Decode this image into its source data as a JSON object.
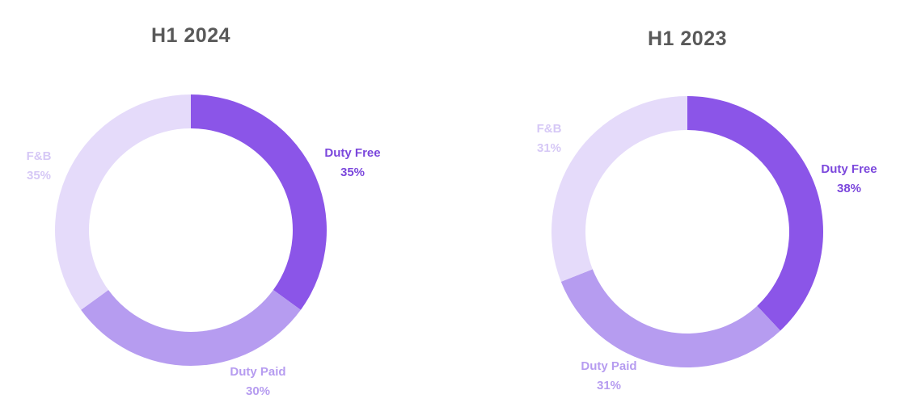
{
  "colors": {
    "duty_free": "#8b55e8",
    "duty_paid": "#b69cf0",
    "fnb": "#e5dbfa",
    "title": "#595959"
  },
  "chart_data": [
    {
      "type": "pie",
      "donut": true,
      "title": "H1 2024",
      "series": [
        {
          "name": "Duty Free",
          "value": 35,
          "value_label": "35%"
        },
        {
          "name": "Duty Paid",
          "value": 30,
          "value_label": "30%"
        },
        {
          "name": "F&B",
          "value": 35,
          "value_label": "35%"
        }
      ]
    },
    {
      "type": "pie",
      "donut": true,
      "title": "H1 2023",
      "series": [
        {
          "name": "Duty Free",
          "value": 38,
          "value_label": "38%"
        },
        {
          "name": "Duty Paid",
          "value": 31,
          "value_label": "31%"
        },
        {
          "name": "F&B",
          "value": 31,
          "value_label": "31%"
        }
      ]
    }
  ]
}
